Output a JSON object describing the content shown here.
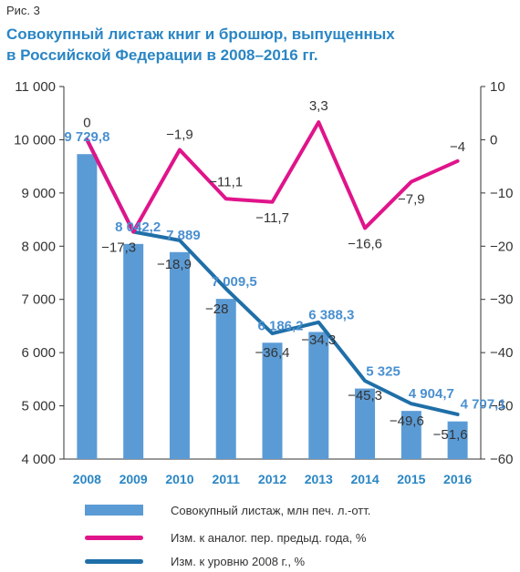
{
  "figure_label": "Рис. 3",
  "title_line1": "Совокупный листаж книг и брошюр, выпущенных",
  "title_line2": "в Российской Федерации в 2008–2016 гг.",
  "colors": {
    "bars": "#5b9bd5",
    "bar_labels": "#4a90d0",
    "annual_change": "#e0148a",
    "vs_2008": "#1f6fa8",
    "axis": "#333333",
    "year_labels": "#2a86c4"
  },
  "chart_data": {
    "type": "bar",
    "categories": [
      "2008",
      "2009",
      "2010",
      "2011",
      "2012",
      "2013",
      "2014",
      "2015",
      "2016"
    ],
    "y_left": {
      "min": 4000,
      "max": 11000,
      "ticks": [
        "4 000",
        "5 000",
        "6 000",
        "7 000",
        "8 000",
        "9 000",
        "10 000",
        "11 000"
      ]
    },
    "y_right": {
      "min": -60,
      "max": 10,
      "ticks": [
        "−60",
        "−50",
        "−40",
        "−30",
        "−20",
        "−10",
        "0",
        "10"
      ]
    },
    "series": [
      {
        "name": "Совокупный листаж, млн печ. л.-отт.",
        "type": "bar",
        "axis": "left",
        "values": [
          9729.8,
          8042.2,
          7889,
          7009.5,
          6186.2,
          6388.3,
          5325,
          4904.7,
          4707.1
        ],
        "labels": [
          "9 729,8",
          "8 042,2",
          "7 889",
          "7 009,5",
          "6 186,2",
          "6 388,3",
          "5 325",
          "4 904,7",
          "4 707,1"
        ]
      },
      {
        "name": "Изм. к аналог. пер. предыд. года, %",
        "type": "line",
        "axis": "right",
        "values": [
          0,
          -17.3,
          -1.9,
          -11.1,
          -11.7,
          3.3,
          -16.6,
          -7.9,
          -4
        ],
        "labels": [
          "0",
          "−17,3",
          "−1,9",
          "−11,1",
          "−11,7",
          "3,3",
          "−16,6",
          "−7,9",
          "−4"
        ]
      },
      {
        "name": "Изм. к уровню 2008 г., %",
        "type": "line",
        "axis": "right",
        "values": [
          0,
          -17.3,
          -18.9,
          -28,
          -36.4,
          -34.3,
          -45.3,
          -49.6,
          -51.6
        ],
        "labels": [
          "",
          "",
          "−18,9",
          "−28",
          "−36,4",
          "−34,3",
          "−45,3",
          "−49,6",
          "−51,6"
        ]
      }
    ]
  }
}
